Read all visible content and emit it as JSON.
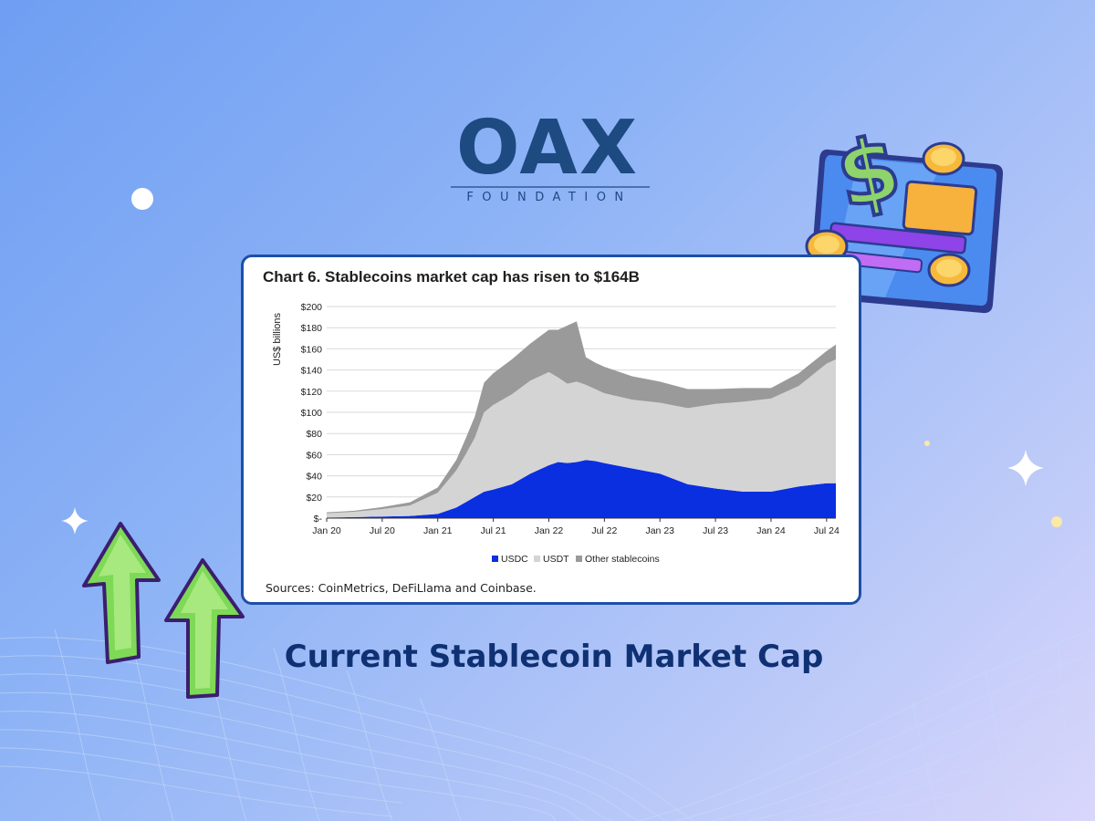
{
  "brand": {
    "name": "OAX",
    "subtitle": "FOUNDATION"
  },
  "caption": "Current Stablecoin Market Cap",
  "colors": {
    "usdc": "#0a2fe0",
    "usdt": "#d4d4d4",
    "other": "#9a9a9a",
    "caption": "#0f3173",
    "card_border": "#1d4fa8"
  },
  "chart_data": {
    "type": "area",
    "stacked": true,
    "title": "Chart 6. Stablecoins market cap has risen to $164B",
    "ylabel": "US$ billions",
    "xlabel": "",
    "ylim": [
      0,
      200
    ],
    "yticks": [
      0,
      20,
      40,
      60,
      80,
      100,
      120,
      140,
      160,
      180,
      200
    ],
    "ytick_labels": [
      "$-",
      "$20",
      "$40",
      "$60",
      "$80",
      "$100",
      "$120",
      "$140",
      "$160",
      "$180",
      "$200"
    ],
    "xlim": [
      0,
      55
    ],
    "xticks": [
      0,
      6,
      12,
      18,
      24,
      30,
      36,
      42,
      48,
      54
    ],
    "xtick_labels": [
      "Jan 20",
      "Jul 20",
      "Jan 21",
      "Jul 21",
      "Jan 22",
      "Jul 22",
      "Jan 23",
      "Jul 23",
      "Jan 24",
      "Jul 24"
    ],
    "x": [
      0,
      3,
      6,
      9,
      12,
      14,
      15,
      16,
      17,
      18,
      20,
      22,
      24,
      25,
      26,
      27,
      28,
      29,
      30,
      33,
      36,
      39,
      42,
      45,
      48,
      51,
      54,
      55
    ],
    "series": [
      {
        "name": "USDC",
        "values": [
          0.5,
          1,
          1.5,
          2,
          4,
          10,
          15,
          20,
          25,
          27,
          32,
          42,
          50,
          53,
          52,
          53,
          55,
          54,
          52,
          47,
          42,
          32,
          28,
          25,
          25,
          30,
          33,
          33
        ]
      },
      {
        "name": "USDT",
        "values": [
          4,
          5,
          7,
          10,
          20,
          35,
          45,
          56,
          75,
          80,
          85,
          88,
          88,
          80,
          75,
          76,
          71,
          68,
          66,
          65,
          67,
          72,
          80,
          85,
          88,
          95,
          113,
          117
        ]
      },
      {
        "name": "Other stablecoins",
        "values": [
          1,
          1,
          2,
          3,
          5,
          10,
          15,
          20,
          28,
          30,
          33,
          35,
          40,
          45,
          55,
          57,
          26,
          25,
          25,
          22,
          20,
          18,
          14,
          13,
          10,
          12,
          12,
          14
        ]
      }
    ],
    "legend": {
      "position": "bottom",
      "entries": [
        "USDC",
        "USDT",
        "Other stablecoins"
      ]
    },
    "grid": true,
    "source": "Sources: CoinMetrics, DeFiLlama and Coinbase."
  }
}
